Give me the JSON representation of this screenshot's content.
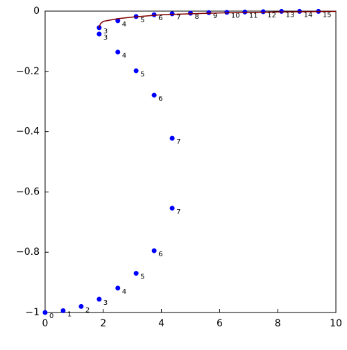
{
  "chart_data": {
    "type": "scatter",
    "xlim": [
      0,
      10
    ],
    "ylim": [
      -1,
      0
    ],
    "xticks": [
      0,
      2,
      4,
      6,
      8,
      10
    ],
    "yticks": [
      {
        "value": -1,
        "label": "−1"
      },
      {
        "value": -0.8,
        "label": "−0.8"
      },
      {
        "value": -0.6,
        "label": "−0.6"
      },
      {
        "value": -0.4,
        "label": "−0.4"
      },
      {
        "value": -0.2,
        "label": "−0.2"
      },
      0
    ],
    "series": [
      {
        "color": "#0000ff",
        "x": [
          0,
          0.62,
          1.24,
          1.86,
          2.5,
          3.13,
          3.75,
          4.37,
          4.37,
          3.75,
          3.13,
          2.5,
          1.86,
          1.86,
          2.5,
          3.13,
          3.75,
          4.37,
          5.0,
          5.63,
          6.25,
          6.87,
          7.5,
          8.13,
          8.75,
          9.4
        ],
        "values": [
          -1,
          -0.994,
          -0.98,
          -0.956,
          -0.919,
          -0.87,
          -0.795,
          -0.654,
          -0.422,
          -0.279,
          -0.198,
          -0.136,
          -0.076,
          -0.055,
          -0.032,
          -0.018,
          -0.012,
          -0.009,
          -0.007,
          -0.005,
          -0.004,
          -0.003,
          -0.002,
          -0.001,
          -0.001,
          -0.001
        ],
        "labels": [
          "0",
          "1",
          "2",
          "3",
          "4",
          "5",
          "6",
          "7",
          "7",
          "6",
          "5",
          "4",
          "3",
          "3",
          "4",
          "5",
          "6",
          "7",
          "8",
          "9",
          "10",
          "11",
          "12",
          "13",
          "14",
          "15"
        ]
      },
      {
        "type": "line",
        "color": "#800000",
        "x": [
          1.86,
          1.9,
          2,
          2.5,
          3,
          4,
          5,
          6,
          8,
          10
        ],
        "values": [
          -0.055,
          -0.042,
          -0.034,
          -0.025,
          -0.02,
          -0.012,
          -0.009,
          -0.006,
          -0.003,
          -0.001
        ]
      }
    ]
  }
}
